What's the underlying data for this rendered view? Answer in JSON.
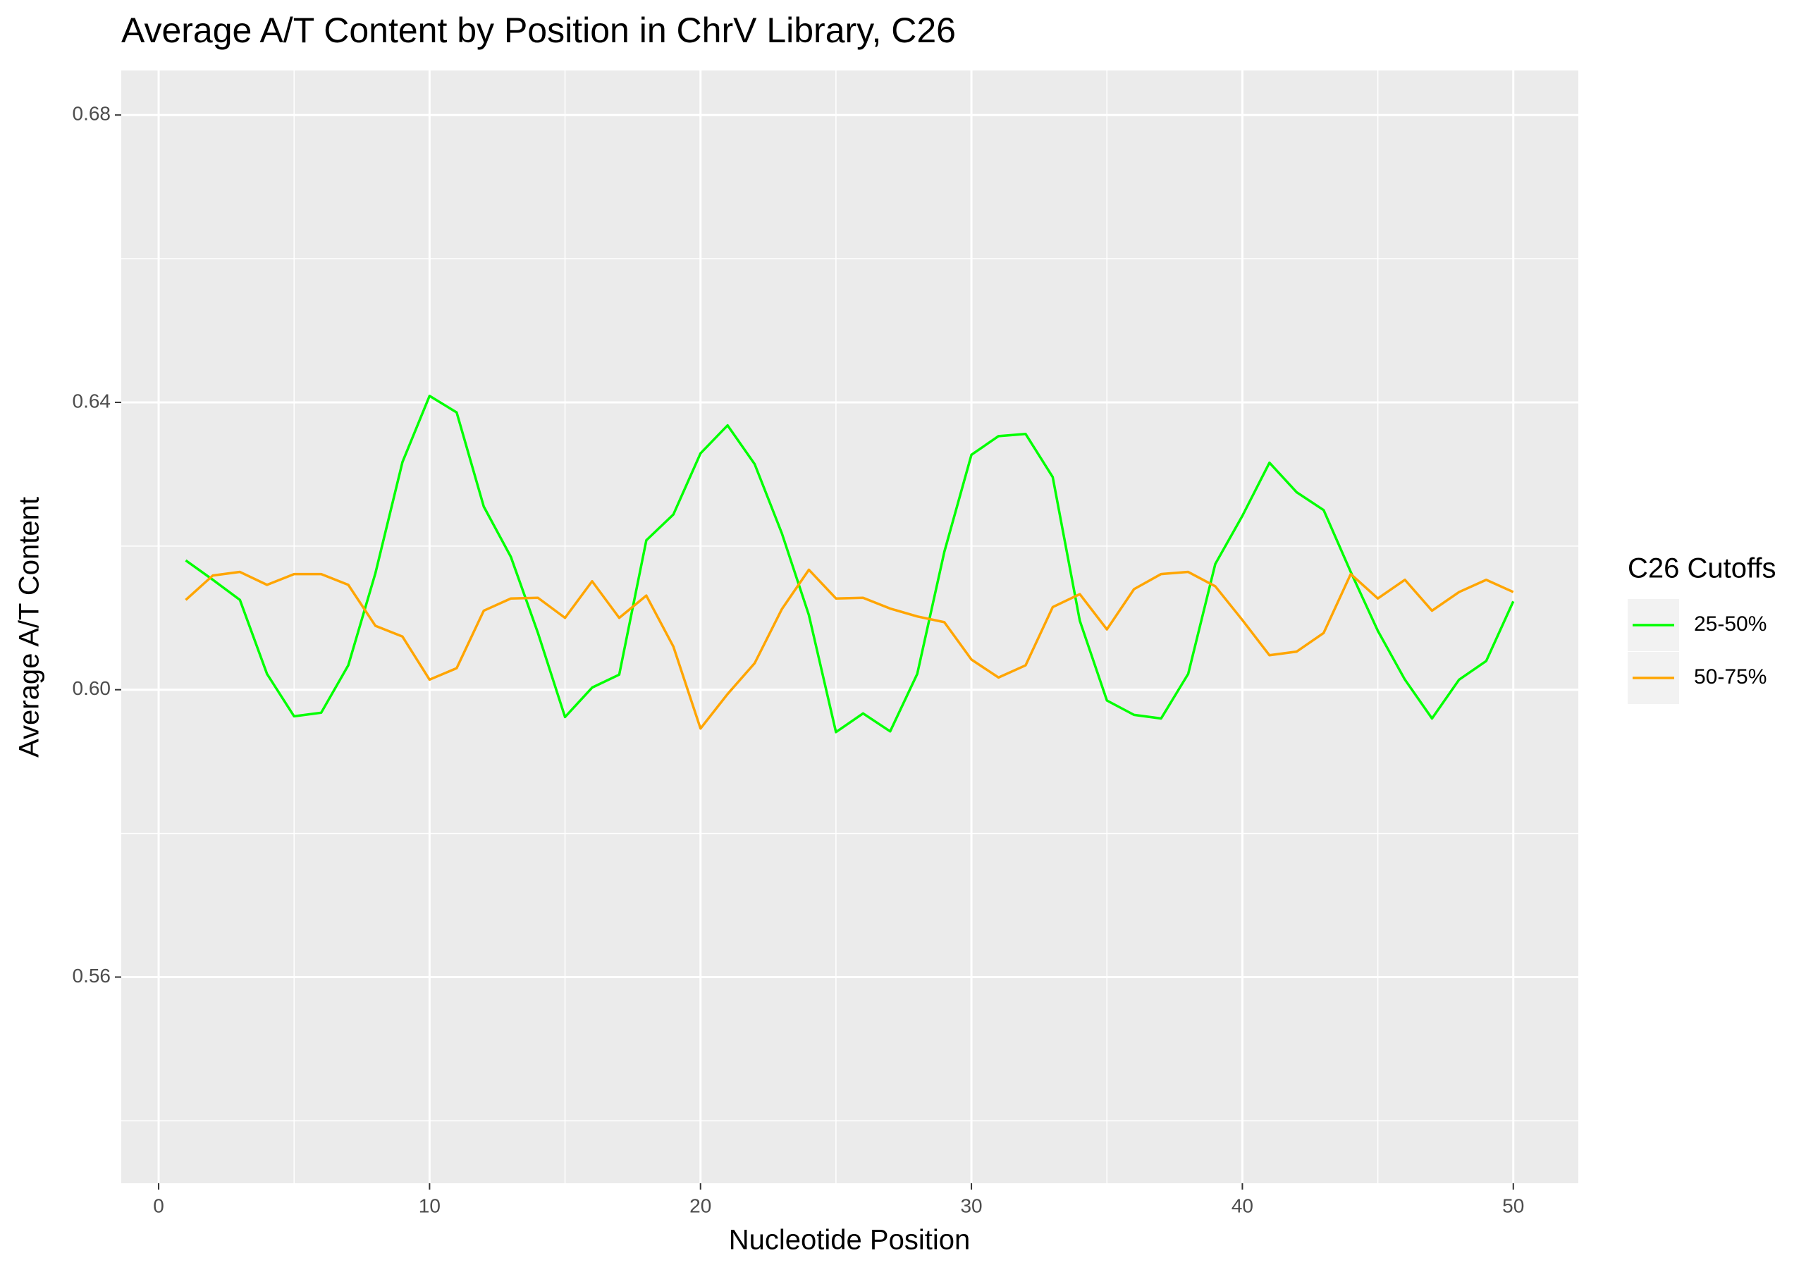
{
  "chart_data": {
    "type": "line",
    "title": "Average A/T Content by Position in ChrV Library, C26",
    "x_label": "Nucleotide Position",
    "y_label": "Average A/T Content",
    "legend_title": "C26 Cutoffs",
    "legend_position": "right",
    "grid": true,
    "x": [
      1,
      2,
      3,
      4,
      5,
      6,
      7,
      8,
      9,
      10,
      11,
      12,
      13,
      14,
      15,
      16,
      17,
      18,
      19,
      20,
      21,
      22,
      23,
      24,
      25,
      26,
      27,
      28,
      29,
      30,
      31,
      32,
      33,
      34,
      35,
      36,
      37,
      38,
      39,
      40,
      41,
      42,
      43,
      44,
      45,
      46,
      47,
      48,
      49,
      50
    ],
    "series": [
      {
        "name": "25-50%",
        "color": "#00ff00",
        "values": [
          0.618,
          0.6153,
          0.6125,
          0.6022,
          0.5963,
          0.5968,
          0.6034,
          0.6162,
          0.6317,
          0.6409,
          0.6386,
          0.6255,
          0.6185,
          0.6079,
          0.5962,
          0.6003,
          0.6021,
          0.6208,
          0.6244,
          0.6329,
          0.6368,
          0.6314,
          0.6218,
          0.6104,
          0.5941,
          0.5967,
          0.5942,
          0.6022,
          0.6192,
          0.6327,
          0.6353,
          0.6356,
          0.6296,
          0.6096,
          0.5985,
          0.5965,
          0.596,
          0.6022,
          0.6175,
          0.6242,
          0.6316,
          0.6275,
          0.625,
          0.6164,
          0.6082,
          0.6014,
          0.596,
          0.6014,
          0.604,
          0.6123
        ]
      },
      {
        "name": "50-75%",
        "color": "#ffa500",
        "values": [
          0.6125,
          0.6159,
          0.6164,
          0.6146,
          0.6161,
          0.6161,
          0.6146,
          0.6089,
          0.6074,
          0.6014,
          0.603,
          0.611,
          0.6127,
          0.6128,
          0.61,
          0.6151,
          0.61,
          0.6131,
          0.606,
          0.5946,
          0.5994,
          0.6037,
          0.6112,
          0.6167,
          0.6127,
          0.6128,
          0.6113,
          0.6102,
          0.6094,
          0.6042,
          0.6017,
          0.6034,
          0.6115,
          0.6133,
          0.6084,
          0.614,
          0.6161,
          0.6164,
          0.6144,
          0.6097,
          0.6048,
          0.6053,
          0.6079,
          0.6161,
          0.6127,
          0.6153,
          0.611,
          0.6136,
          0.6153,
          0.6136
        ]
      }
    ],
    "xlim": [
      -1.38,
      52.4
    ],
    "ylim": [
      0.5313,
      0.6862
    ],
    "xticks": [
      0,
      10,
      20,
      30,
      40,
      50
    ],
    "yticks": [
      {
        "value": 0.56,
        "label": "0.56"
      },
      {
        "value": 0.6,
        "label": "0.60"
      },
      {
        "value": 0.64,
        "label": "0.64"
      },
      {
        "value": 0.68,
        "label": "0.68"
      }
    ],
    "xminor": [
      5,
      15,
      25,
      35,
      45
    ],
    "yminor": [
      0.54,
      0.58,
      0.62,
      0.66
    ]
  }
}
